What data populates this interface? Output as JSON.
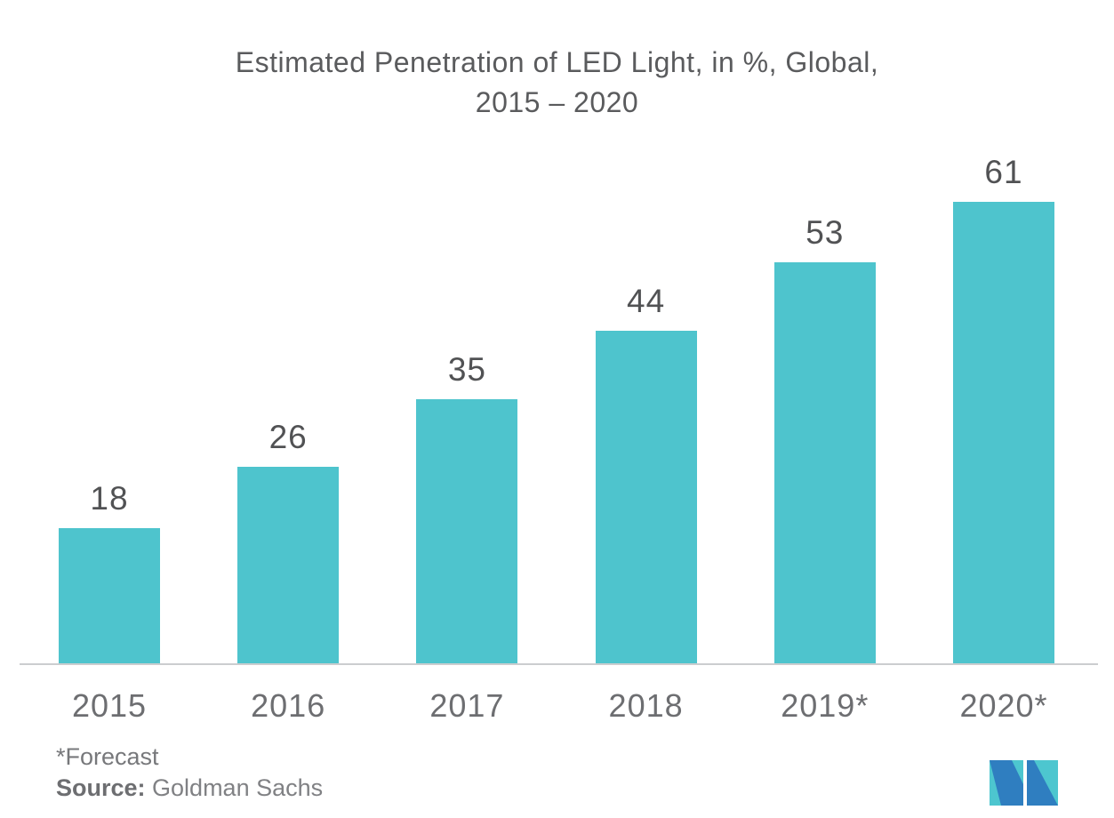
{
  "title": {
    "line1": "Estimated Penetration of LED Light, in %, Global,",
    "line2": "2015 – 2020"
  },
  "chart_data": {
    "type": "bar",
    "title": "Estimated Penetration of LED Light, in %, Global, 2015 – 2020",
    "categories": [
      "2015",
      "2016",
      "2017",
      "2018",
      "2019*",
      "2020*"
    ],
    "values": [
      18,
      26,
      35,
      44,
      53,
      61
    ],
    "xlabel": "",
    "ylabel": "",
    "ylim": [
      0,
      65
    ],
    "grid": false,
    "legend": "none",
    "bar_color": "#4EC4CD",
    "value_label_color": "#515254",
    "category_label_color": "#6D6E71",
    "axis_line_color": "#CBCDCF"
  },
  "footnote": {
    "forecast_note": "*Forecast",
    "source_label": "Source:",
    "source_value": " Goldman Sachs"
  },
  "logo": {
    "teal": "#4DC6CF",
    "blue": "#2F7EC0"
  }
}
